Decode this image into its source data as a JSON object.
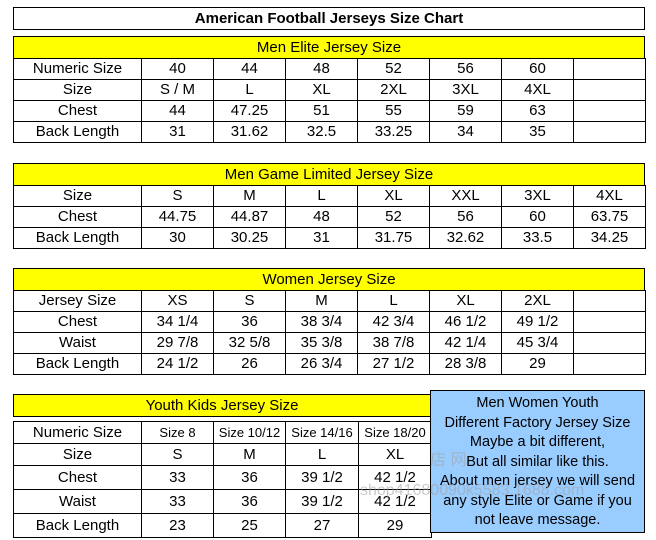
{
  "title": "American Football Jerseys Size Chart",
  "elite": {
    "header": "Men Elite Jersey Size",
    "rows": [
      [
        "Numeric Size",
        "40",
        "44",
        "48",
        "52",
        "56",
        "60",
        ""
      ],
      [
        "Size",
        "S / M",
        "L",
        "XL",
        "2XL",
        "3XL",
        "4XL",
        ""
      ],
      [
        "Chest",
        "44",
        "47.25",
        "51",
        "55",
        "59",
        "63",
        ""
      ],
      [
        "Back Length",
        "31",
        "31.62",
        "32.5",
        "33.25",
        "34",
        "35",
        ""
      ]
    ]
  },
  "game": {
    "header": "Men Game Limited Jersey Size",
    "rows": [
      [
        "Size",
        "S",
        "M",
        "L",
        "XL",
        "XXL",
        "3XL",
        "4XL"
      ],
      [
        "Chest",
        "44.75",
        "44.87",
        "48",
        "52",
        "56",
        "60",
        "63.75"
      ],
      [
        "Back Length",
        "30",
        "30.25",
        "31",
        "31.75",
        "32.62",
        "33.5",
        "34.25"
      ]
    ]
  },
  "women": {
    "header": "Women Jersey Size",
    "rows": [
      [
        "Jersey Size",
        "XS",
        "S",
        "M",
        "L",
        "XL",
        "2XL",
        ""
      ],
      [
        "Chest",
        "34 1/4",
        "36",
        "38 3/4",
        "42 3/4",
        "46 1/2",
        "49 1/2",
        ""
      ],
      [
        "Waist",
        "29 7/8",
        "32 5/8",
        "35 3/8",
        "38 7/8",
        "42 1/4",
        "45 3/4",
        ""
      ],
      [
        "Back Length",
        "24 1/2",
        "26",
        "26 3/4",
        "27 1/2",
        "28 3/8",
        "29",
        ""
      ]
    ]
  },
  "youth": {
    "header": "Youth Kids Jersey Size",
    "rows": [
      [
        "Numeric Size",
        "Size 8",
        "Size 10/12",
        "Size 14/16",
        "Size 18/20"
      ],
      [
        "Size",
        "S",
        "M",
        "L",
        "XL"
      ],
      [
        "Chest",
        "33",
        "36",
        "39 1/2",
        "42 1/2"
      ],
      [
        "Waist",
        "33",
        "36",
        "39 1/2",
        "42 1/2"
      ],
      [
        "Back Length",
        "23",
        "25",
        "27",
        "29"
      ]
    ]
  },
  "note": {
    "lines": [
      "Men Women Youth",
      "Different Factory Jersey Size",
      "Maybe a bit different,",
      "But all similar like this.",
      "About men jersey we will send",
      "any style Elite or Game if you",
      "not leave message."
    ]
  },
  "watermark": {
    "line1": "店 网",
    "line2": "shop41680090k5583.1688.com"
  }
}
